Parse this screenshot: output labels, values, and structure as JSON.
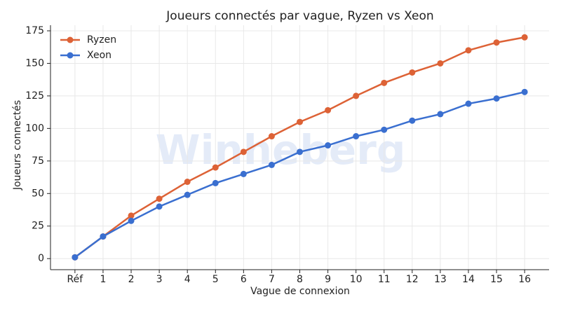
{
  "chart_data": {
    "type": "line",
    "title": "Joueurs connectés par vague, Ryzen vs Xeon",
    "xlabel": "Vague de connexion",
    "ylabel": "Joueurs connectés",
    "watermark": "Winheberg",
    "categories": [
      "Réf",
      "1",
      "2",
      "3",
      "4",
      "5",
      "6",
      "7",
      "8",
      "9",
      "10",
      "11",
      "12",
      "13",
      "14",
      "15",
      "16"
    ],
    "series": [
      {
        "name": "Ryzen",
        "color": "#dd6236",
        "values": [
          1,
          17,
          33,
          46,
          59,
          70,
          82,
          94,
          105,
          114,
          125,
          135,
          143,
          150,
          160,
          166,
          170
        ]
      },
      {
        "name": "Xeon",
        "color": "#3a6fd0",
        "values": [
          1,
          17,
          29,
          40,
          49,
          58,
          65,
          72,
          82,
          87,
          94,
          99,
          106,
          111,
          119,
          123,
          128
        ]
      }
    ],
    "ylim": [
      -8.5,
      179.3
    ],
    "yticks": [
      0,
      25,
      50,
      75,
      100,
      125,
      150,
      175
    ],
    "grid": true,
    "legend": "upper left"
  }
}
